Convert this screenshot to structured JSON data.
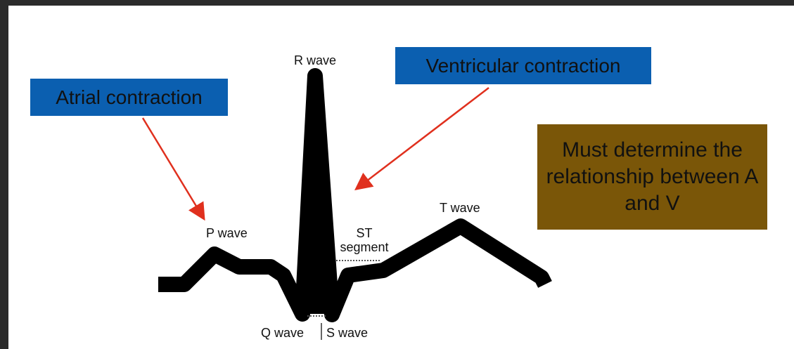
{
  "labels": {
    "r_wave": "R wave",
    "p_wave": "P wave",
    "t_wave": "T wave",
    "q_wave": "Q wave",
    "s_wave": "S wave",
    "st_segment": "ST\nsegment"
  },
  "callouts": {
    "atrial": "Atrial contraction",
    "ventricular": "Ventricular contraction",
    "note": "Must determine the relationship between A and V"
  }
}
